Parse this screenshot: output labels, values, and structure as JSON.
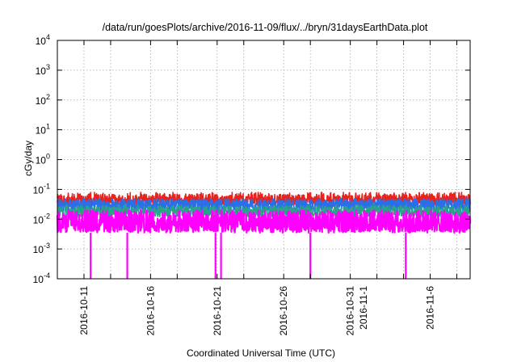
{
  "chart_data": {
    "type": "line",
    "title": "/data/run/goesPlots/archive/2016-11-09/flux/../bryn/31daysEarthData.plot",
    "xlabel": "Coordinated Universal Time (UTC)",
    "ylabel": "cGy/day",
    "y_scale": "log",
    "ylim": [
      0.0001,
      10000
    ],
    "y_ticks": [
      {
        "base": "10",
        "exp": "-4"
      },
      {
        "base": "10",
        "exp": "-3"
      },
      {
        "base": "10",
        "exp": "-2"
      },
      {
        "base": "10",
        "exp": "-1"
      },
      {
        "base": "10",
        "exp": "0"
      },
      {
        "base": "10",
        "exp": "1"
      },
      {
        "base": "10",
        "exp": "2"
      },
      {
        "base": "10",
        "exp": "3"
      },
      {
        "base": "10",
        "exp": "4"
      }
    ],
    "xlim": [
      "2016-10-09",
      "2016-11-09"
    ],
    "x_ticks": [
      "2016-10-11",
      "2016-10-16",
      "2016-10-21",
      "2016-10-26",
      "2016-10-31",
      "2016-11-1",
      "2016-11-6"
    ],
    "x_grid_dates": [
      "2016-10-11",
      "2016-10-13",
      "2016-10-16",
      "2016-10-18",
      "2016-10-21",
      "2016-10-23",
      "2016-10-26",
      "2016-10-28",
      "2016-10-31",
      "2016-11-02",
      "2016-11-04",
      "2016-11-06",
      "2016-11-08"
    ],
    "grid": true,
    "series": [
      {
        "color": "#e8231e",
        "typical": 0.045,
        "low": 0.03,
        "high": 0.08
      },
      {
        "color": "#2b6fe8",
        "typical": 0.03,
        "low": 0.018,
        "high": 0.05
      },
      {
        "color": "#2aa38a",
        "typical": 0.018,
        "low": 0.012,
        "high": 0.03
      },
      {
        "color": "#ff00ff",
        "typical": 0.008,
        "low": 0.0035,
        "high": 0.02
      }
    ],
    "dropouts": [
      "2016-10-11T12:00",
      "2016-10-14T06:00",
      "2016-10-20T21:00",
      "2016-10-21T07:00",
      "2016-10-28T00:00",
      "2016-11-04T04:00"
    ]
  }
}
